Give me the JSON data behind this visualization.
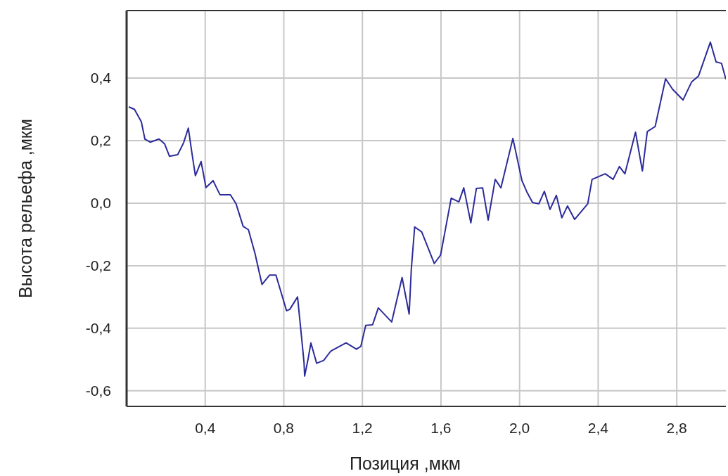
{
  "chart_data": {
    "type": "line",
    "xlabel": "Позиция ,мкм",
    "ylabel": "Высота рельефа ,мкм",
    "xlim": [
      0,
      3.05
    ],
    "ylim": [
      -0.65,
      0.616
    ],
    "xticks": [
      {
        "value": 0.4,
        "label": "0,4"
      },
      {
        "value": 0.8,
        "label": "0,8"
      },
      {
        "value": 1.2,
        "label": "1,2"
      },
      {
        "value": 1.6,
        "label": "1,6"
      },
      {
        "value": 2.0,
        "label": "2,0"
      },
      {
        "value": 2.4,
        "label": "2,4"
      },
      {
        "value": 2.8,
        "label": "2,8"
      }
    ],
    "yticks": [
      {
        "value": -0.6,
        "label": "-0,6"
      },
      {
        "value": -0.4,
        "label": "-0,4"
      },
      {
        "value": -0.2,
        "label": "-0,2"
      },
      {
        "value": 0,
        "label": "0,0"
      },
      {
        "value": 0.2,
        "label": "0,2"
      },
      {
        "value": 0.4,
        "label": "0,4"
      }
    ],
    "grid": true,
    "marker": "none",
    "series": [
      {
        "color": "#2b2b9a",
        "x": [
          0.011,
          0.04,
          0.075,
          0.093,
          0.12,
          0.165,
          0.193,
          0.218,
          0.26,
          0.29,
          0.314,
          0.332,
          0.35,
          0.379,
          0.404,
          0.44,
          0.475,
          0.528,
          0.557,
          0.593,
          0.62,
          0.653,
          0.689,
          0.728,
          0.76,
          0.814,
          0.83,
          0.87,
          0.889,
          0.903,
          0.906,
          0.924,
          0.938,
          0.967,
          1.003,
          1.038,
          1.049,
          1.117,
          1.17,
          1.192,
          1.217,
          1.252,
          1.281,
          1.349,
          1.402,
          1.438,
          1.449,
          1.466,
          1.502,
          1.566,
          1.598,
          1.62,
          1.652,
          1.691,
          1.716,
          1.752,
          1.78,
          1.812,
          1.84,
          1.876,
          1.905,
          1.966,
          2.012,
          2.037,
          2.066,
          2.098,
          2.126,
          2.155,
          2.187,
          2.215,
          2.244,
          2.28,
          2.347,
          2.369,
          2.436,
          2.476,
          2.508,
          2.536,
          2.59,
          2.625,
          2.65,
          2.69,
          2.743,
          2.779,
          2.832,
          2.875,
          2.911,
          2.971,
          3.0,
          3.028,
          3.05
        ],
        "values": [
          0.308,
          0.3,
          0.26,
          0.205,
          0.195,
          0.205,
          0.19,
          0.15,
          0.155,
          0.193,
          0.24,
          0.162,
          0.088,
          0.133,
          0.05,
          0.072,
          0.027,
          0.027,
          -0.002,
          -0.074,
          -0.085,
          -0.16,
          -0.26,
          -0.23,
          -0.23,
          -0.344,
          -0.34,
          -0.3,
          -0.42,
          -0.51,
          -0.553,
          -0.497,
          -0.447,
          -0.512,
          -0.503,
          -0.474,
          -0.47,
          -0.447,
          -0.467,
          -0.458,
          -0.391,
          -0.389,
          -0.335,
          -0.38,
          -0.238,
          -0.355,
          -0.211,
          -0.076,
          -0.092,
          -0.193,
          -0.166,
          -0.092,
          0.016,
          0.004,
          0.049,
          -0.063,
          0.047,
          0.049,
          -0.054,
          0.076,
          0.049,
          0.207,
          0.072,
          0.036,
          0.002,
          -0.002,
          0.038,
          -0.02,
          0.025,
          -0.047,
          -0.009,
          -0.052,
          -0.002,
          0.076,
          0.094,
          0.076,
          0.117,
          0.094,
          0.227,
          0.103,
          0.229,
          0.245,
          0.398,
          0.364,
          0.33,
          0.387,
          0.407,
          0.515,
          0.452,
          0.447,
          0.396
        ]
      }
    ]
  }
}
